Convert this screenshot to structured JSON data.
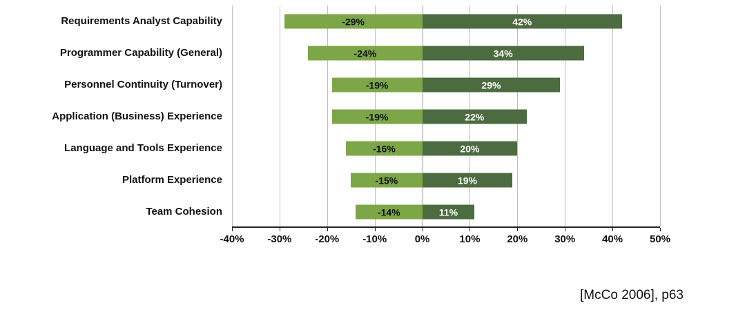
{
  "chart_data": {
    "type": "bar",
    "orientation": "horizontal",
    "title": "",
    "categories": [
      "Requirements Analyst Capability",
      "Programmer Capability (General)",
      "Personnel Continuity (Turnover)",
      "Application (Business) Experience",
      "Language and Tools Experience",
      "Platform Experience",
      "Team Cohesion"
    ],
    "series": [
      {
        "name": "negative-impact",
        "values": [
          -29,
          -24,
          -19,
          -19,
          -16,
          -15,
          -14
        ],
        "color": "#7CA647",
        "label_color": "#111111"
      },
      {
        "name": "positive-impact",
        "values": [
          42,
          34,
          29,
          22,
          20,
          19,
          11
        ],
        "color": "#4D6B40",
        "label_color": "#FFFFFF"
      }
    ],
    "x_ticks": [
      "-40%",
      "-30%",
      "-20%",
      "-10%",
      "0%",
      "10%",
      "20%",
      "30%",
      "40%",
      "50%"
    ],
    "xlim": [
      -40,
      50
    ],
    "grid": true,
    "legend": "none",
    "value_label_suffix": "%"
  },
  "citation": "[McCo 2006], p63"
}
